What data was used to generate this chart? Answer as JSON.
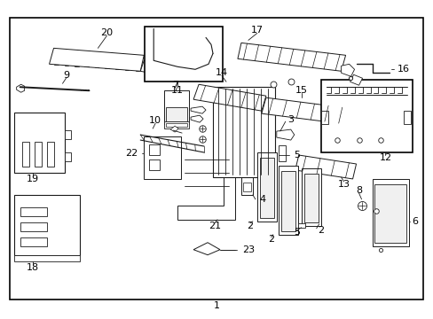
{
  "bg_color": "#ffffff",
  "border_color": "#000000",
  "line_color": "#1a1a1a",
  "fig_width": 4.89,
  "fig_height": 3.6,
  "dpi": 100
}
